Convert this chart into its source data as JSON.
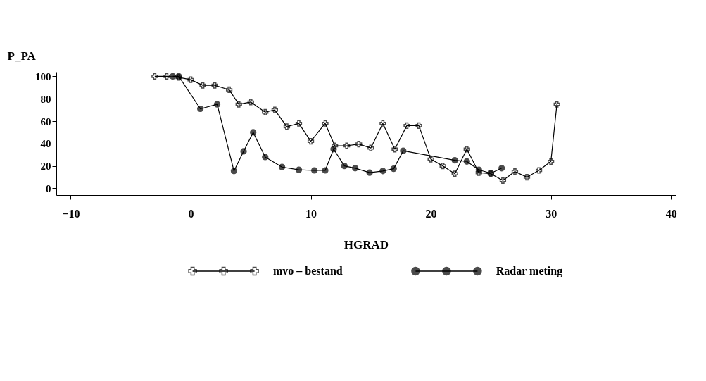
{
  "chart_data": {
    "type": "line",
    "xlabel": "HGRAD",
    "ylabel": "P_PA",
    "xlim": [
      -11.2,
      40.4
    ],
    "xticks": [
      -10,
      0,
      10,
      20,
      30,
      40
    ],
    "ylim": [
      -6,
      104
    ],
    "yticks": [
      0,
      20,
      40,
      60,
      80,
      100
    ],
    "grid": false,
    "legend": "bottom",
    "line_style": "solid",
    "series": [
      {
        "name": "mvo – bestand",
        "color": "#000000",
        "marker": "cross",
        "x": [
          -3,
          -2,
          -1,
          0,
          1,
          2,
          3.2,
          4,
          5,
          6.2,
          7,
          8,
          9,
          10,
          11.2,
          12,
          13,
          14,
          15,
          16,
          17,
          18,
          19,
          20,
          21,
          22,
          23,
          24,
          25,
          26,
          27,
          28,
          29,
          30,
          30.5
        ],
        "values": [
          100,
          100,
          99,
          97,
          92,
          92,
          88,
          75,
          77,
          68,
          70,
          55,
          58,
          42,
          58,
          38,
          38,
          39.5,
          36,
          58,
          35,
          56,
          56,
          26,
          20,
          13,
          35,
          14,
          13,
          7,
          15,
          10,
          16,
          24,
          75
        ]
      },
      {
        "name": "Radar meting",
        "color": "#000000",
        "marker": "circle",
        "x": [
          -1.5,
          -1,
          0.8,
          2.2,
          3.6,
          4.4,
          5.2,
          6.2,
          7.6,
          9,
          10.3,
          11.2,
          11.9,
          12.8,
          13.7,
          14.9,
          16,
          16.9,
          17.7,
          22,
          23,
          24,
          25,
          25.9
        ],
        "values": [
          100,
          100,
          71,
          75,
          15.5,
          33,
          50,
          28,
          19,
          16.5,
          16,
          16,
          35,
          20,
          18,
          14,
          15.5,
          17.5,
          33.5,
          25,
          24,
          16.5,
          13.5,
          18
        ]
      }
    ]
  }
}
